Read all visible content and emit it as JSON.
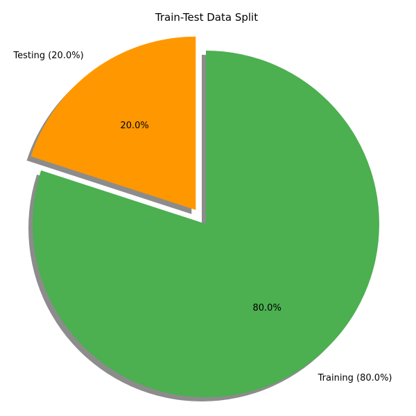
{
  "chart_data": {
    "type": "pie",
    "title": "Train-Test Data Split",
    "start_angle_deg": 90,
    "direction": "clockwise",
    "shadow": true,
    "slices": [
      {
        "label": "Training (80.0%)",
        "value": 80.0,
        "pct_label": "80.0%",
        "color": "#4caf50",
        "exploded": false
      },
      {
        "label": "Testing (20.0%)",
        "value": 20.0,
        "pct_label": "20.0%",
        "color": "#ff9800",
        "exploded": true
      }
    ]
  }
}
